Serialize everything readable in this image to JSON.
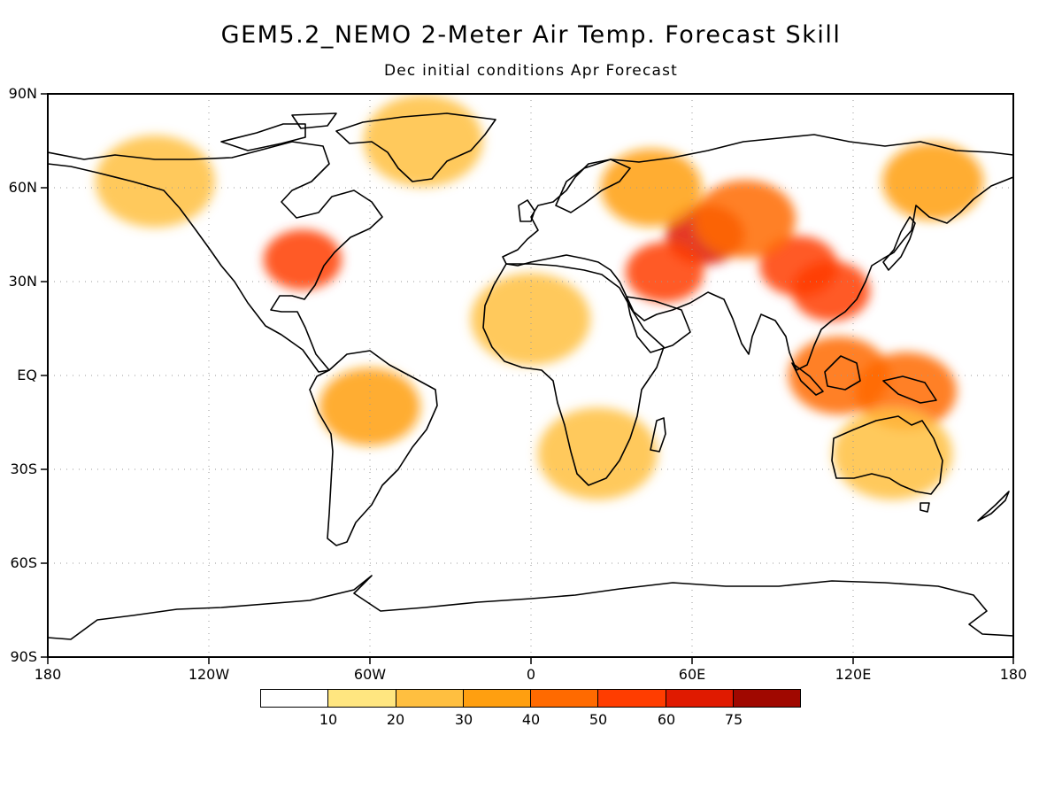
{
  "title": "GEM5.2_NEMO 2-Meter Air Temp. Forecast Skill",
  "subtitle": "Dec initial conditions  Apr Forecast",
  "lat_labels": [
    "90N",
    "60N",
    "30N",
    "EQ",
    "30S",
    "60S",
    "90S"
  ],
  "lon_labels": [
    "180",
    "120W",
    "60W",
    "0",
    "60E",
    "120E",
    "180"
  ],
  "colorbar": {
    "labels": [
      "10",
      "20",
      "30",
      "40",
      "50",
      "60",
      "75"
    ],
    "colors": [
      "#ffffff",
      "#ffe680",
      "#ffbf40",
      "#ff9f10",
      "#ff6a00",
      "#ff3d00",
      "#e01a00",
      "#a00800"
    ]
  },
  "chart_data": {
    "type": "heatmap",
    "projection": "equirectangular",
    "xlim": [
      -180,
      180
    ],
    "ylim": [
      -90,
      90
    ],
    "variable": "forecast skill (percent)",
    "grid": true,
    "skill_regions": [
      {
        "lon": 65,
        "lat": 45,
        "level": 60
      },
      {
        "lon": 100,
        "lat": 35,
        "level": 50
      },
      {
        "lon": 112,
        "lat": 27,
        "level": 50
      },
      {
        "lon": -85,
        "lat": 37,
        "level": 50
      },
      {
        "lon": 50,
        "lat": 33,
        "level": 50
      },
      {
        "lon": 80,
        "lat": 50,
        "level": 40
      },
      {
        "lon": 45,
        "lat": 60,
        "level": 30
      },
      {
        "lon": 150,
        "lat": 62,
        "level": 30
      },
      {
        "lon": 0,
        "lat": 18,
        "level": 20
      },
      {
        "lon": -60,
        "lat": -10,
        "level": 30
      },
      {
        "lon": 25,
        "lat": -25,
        "level": 20
      },
      {
        "lon": -40,
        "lat": 75,
        "level": 20
      },
      {
        "lon": -140,
        "lat": 62,
        "level": 20
      },
      {
        "lon": 140,
        "lat": -5,
        "level": 40
      },
      {
        "lon": 115,
        "lat": 0,
        "level": 40
      },
      {
        "lon": 135,
        "lat": -25,
        "level": 20
      }
    ]
  }
}
